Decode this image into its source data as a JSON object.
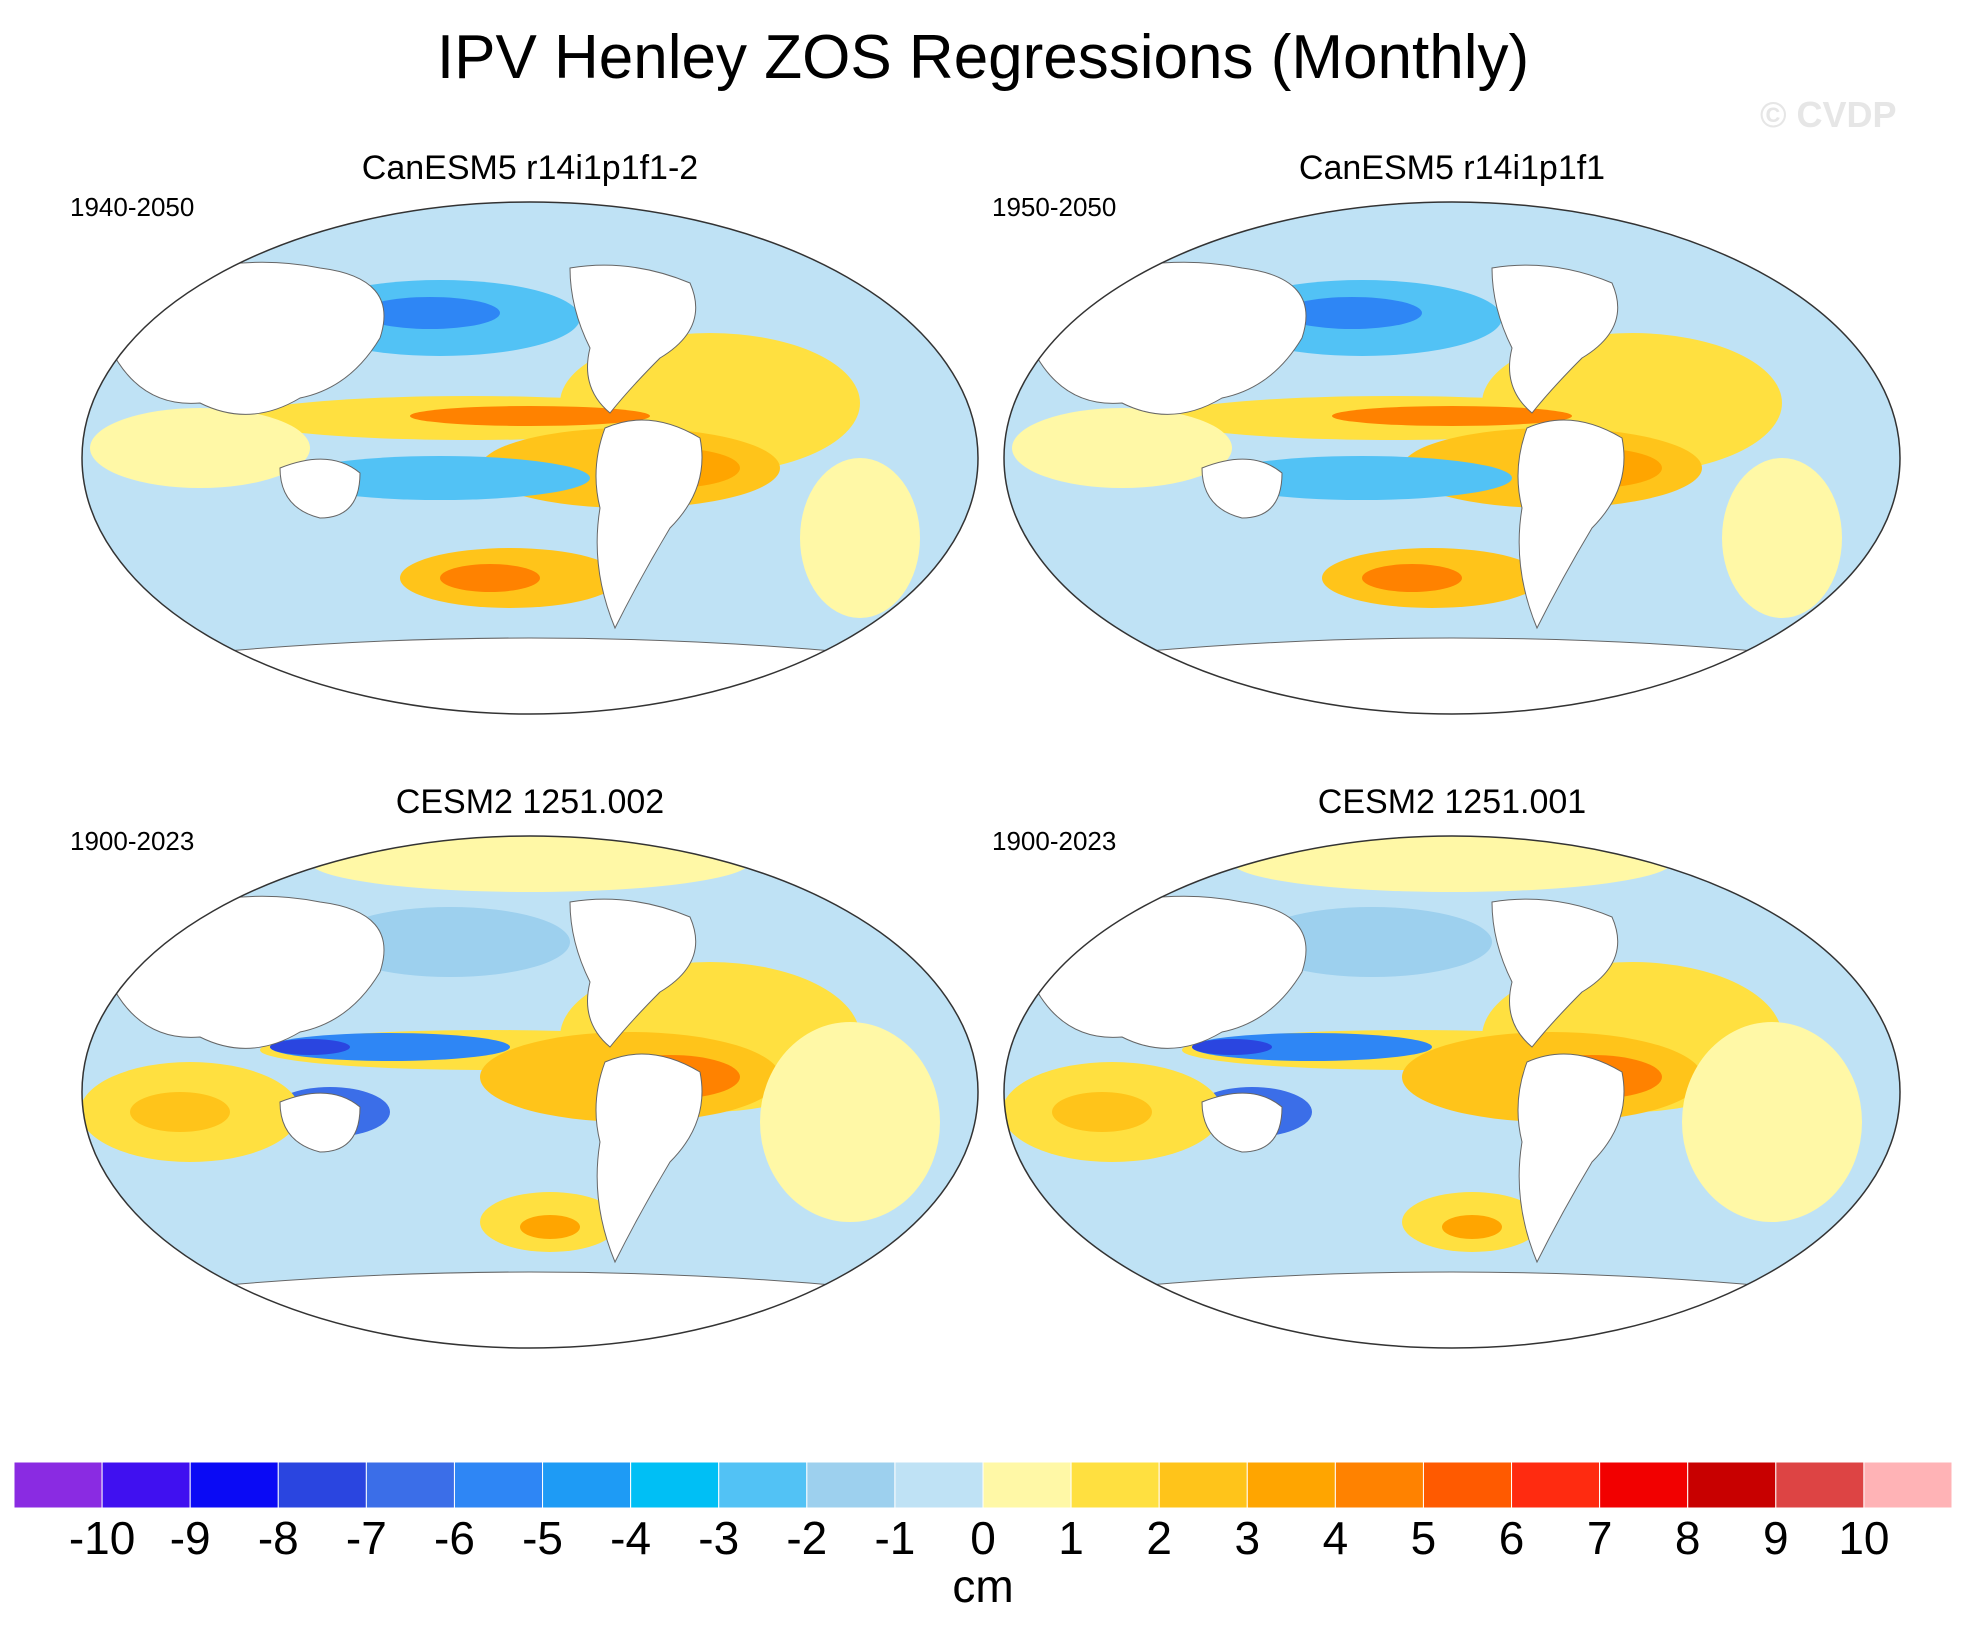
{
  "figure": {
    "title": "IPV Henley ZOS Regressions (Monthly)",
    "watermark": "© CVDP"
  },
  "panels": [
    {
      "title": "CanESM5 r14i1p1f1-2",
      "period": "1940-2050"
    },
    {
      "title": "CanESM5 r14i1p1f1",
      "period": "1950-2050"
    },
    {
      "title": "CESM2 1251.002",
      "period": "1900-2023"
    },
    {
      "title": "CESM2 1251.001",
      "period": "1900-2023"
    }
  ],
  "colorbar": {
    "units": "cm",
    "tick_labels": [
      "-10",
      "-9",
      "-8",
      "-7",
      "-6",
      "-5",
      "-4",
      "-3",
      "-2",
      "-1",
      "0",
      "1",
      "2",
      "3",
      "4",
      "5",
      "6",
      "7",
      "8",
      "9",
      "10"
    ],
    "colors": [
      "#8a2be2",
      "#4010f0",
      "#0a0af5",
      "#2a45e0",
      "#3b6ee8",
      "#2e86f5",
      "#1e9bf5",
      "#00bff5",
      "#52c2f5",
      "#9dd0ee",
      "#bfe2f5",
      "#fff8a6",
      "#ffe040",
      "#ffc41a",
      "#ffa500",
      "#ff8200",
      "#ff5a00",
      "#ff2b10",
      "#f20000",
      "#c80000",
      "#dd4444",
      "#ffb3b6"
    ]
  },
  "chart_data": {
    "type": "heatmap",
    "title": "IPV Henley ZOS Regressions (Monthly)",
    "variable": "ZOS regression on IPV Henley index",
    "units": "cm",
    "levels": [
      -10,
      -9,
      -8,
      -7,
      -6,
      -5,
      -4,
      -3,
      -2,
      -1,
      0,
      1,
      2,
      3,
      4,
      5,
      6,
      7,
      8,
      9,
      10
    ],
    "panels": [
      {
        "model": "CanESM5 r14i1p1f1-2",
        "period": "1940-2050",
        "eq_east_pacific_max": 5,
        "nw_pacific_min": -5,
        "south_pacific_max": 5
      },
      {
        "model": "CanESM5 r14i1p1f1",
        "period": "1950-2050",
        "eq_east_pacific_max": 5,
        "nw_pacific_min": -5,
        "south_pacific_max": 5
      },
      {
        "model": "CESM2 1251.002",
        "period": "1900-2023",
        "eq_east_pacific_max": 5,
        "west_pacific_min": -7,
        "south_pacific_max": 4
      },
      {
        "model": "CESM2 1251.001",
        "period": "1900-2023",
        "eq_east_pacific_max": 5,
        "west_pacific_min": -7,
        "south_pacific_max": 4
      }
    ]
  }
}
